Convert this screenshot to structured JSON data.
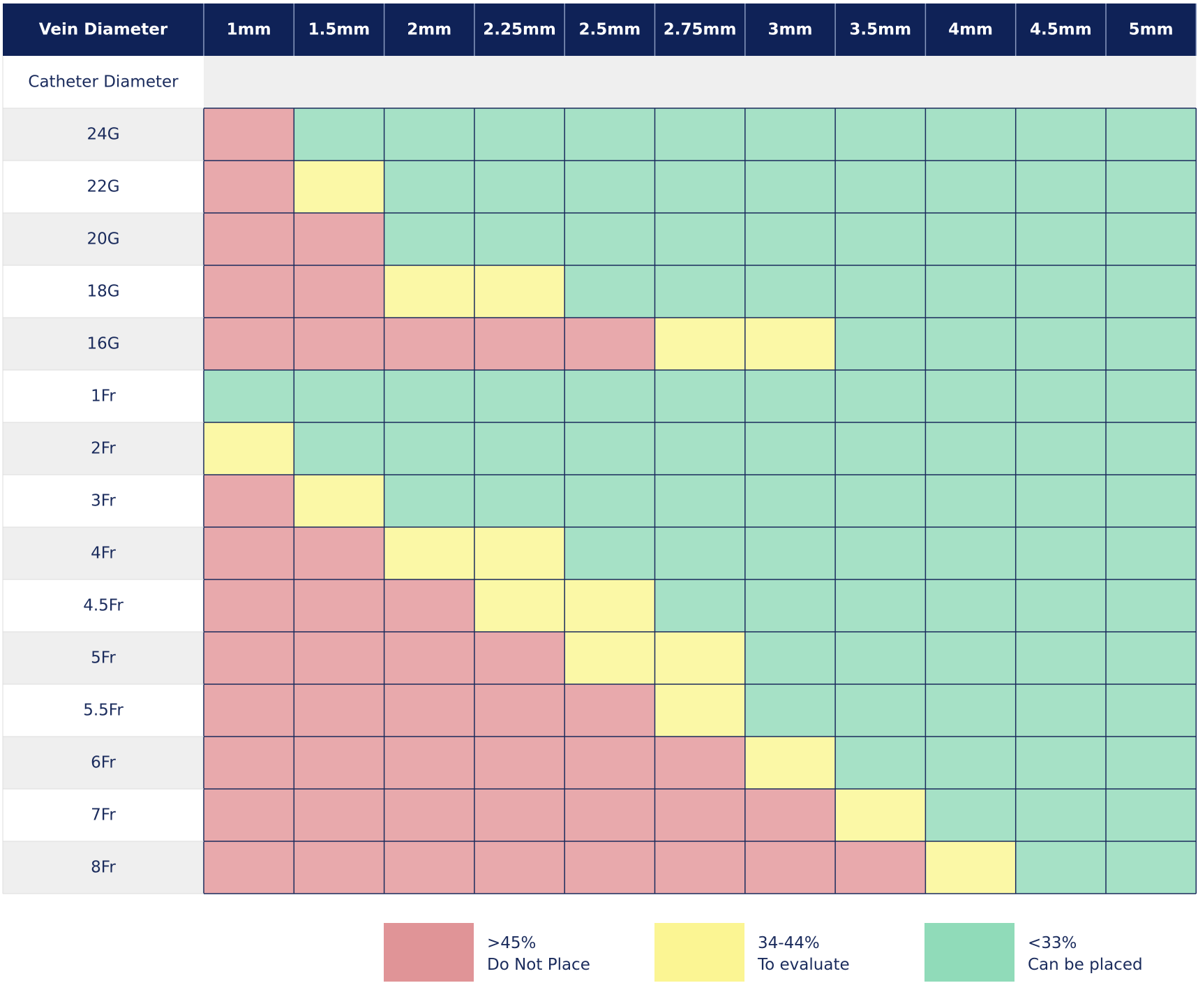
{
  "chart_data": {
    "type": "table",
    "header_label": "Vein Diameter",
    "subheader_label": "Catheter Diameter",
    "columns": [
      "1mm",
      "1.5mm",
      "2mm",
      "2.25mm",
      "2.5mm",
      "2.75mm",
      "3mm",
      "3.5mm",
      "4mm",
      "4.5mm",
      "5mm"
    ],
    "rows": [
      {
        "label": "24G",
        "cells": [
          "R",
          "G",
          "G",
          "G",
          "G",
          "G",
          "G",
          "G",
          "G",
          "G",
          "G"
        ]
      },
      {
        "label": "22G",
        "cells": [
          "R",
          "Y",
          "G",
          "G",
          "G",
          "G",
          "G",
          "G",
          "G",
          "G",
          "G"
        ]
      },
      {
        "label": "20G",
        "cells": [
          "R",
          "R",
          "G",
          "G",
          "G",
          "G",
          "G",
          "G",
          "G",
          "G",
          "G"
        ]
      },
      {
        "label": "18G",
        "cells": [
          "R",
          "R",
          "Y",
          "Y",
          "G",
          "G",
          "G",
          "G",
          "G",
          "G",
          "G"
        ]
      },
      {
        "label": "16G",
        "cells": [
          "R",
          "R",
          "R",
          "R",
          "R",
          "Y",
          "Y",
          "G",
          "G",
          "G",
          "G"
        ]
      },
      {
        "label": "1Fr",
        "cells": [
          "G",
          "G",
          "G",
          "G",
          "G",
          "G",
          "G",
          "G",
          "G",
          "G",
          "G"
        ]
      },
      {
        "label": "2Fr",
        "cells": [
          "Y",
          "G",
          "G",
          "G",
          "G",
          "G",
          "G",
          "G",
          "G",
          "G",
          "G"
        ]
      },
      {
        "label": "3Fr",
        "cells": [
          "R",
          "Y",
          "G",
          "G",
          "G",
          "G",
          "G",
          "G",
          "G",
          "G",
          "G"
        ]
      },
      {
        "label": "4Fr",
        "cells": [
          "R",
          "R",
          "Y",
          "Y",
          "G",
          "G",
          "G",
          "G",
          "G",
          "G",
          "G"
        ]
      },
      {
        "label": "4.5Fr",
        "cells": [
          "R",
          "R",
          "R",
          "Y",
          "Y",
          "G",
          "G",
          "G",
          "G",
          "G",
          "G"
        ]
      },
      {
        "label": "5Fr",
        "cells": [
          "R",
          "R",
          "R",
          "R",
          "Y",
          "Y",
          "G",
          "G",
          "G",
          "G",
          "G"
        ]
      },
      {
        "label": "5.5Fr",
        "cells": [
          "R",
          "R",
          "R",
          "R",
          "R",
          "Y",
          "G",
          "G",
          "G",
          "G",
          "G"
        ]
      },
      {
        "label": "6Fr",
        "cells": [
          "R",
          "R",
          "R",
          "R",
          "R",
          "R",
          "Y",
          "G",
          "G",
          "G",
          "G"
        ]
      },
      {
        "label": "7Fr",
        "cells": [
          "R",
          "R",
          "R",
          "R",
          "R",
          "R",
          "R",
          "Y",
          "G",
          "G",
          "G"
        ]
      },
      {
        "label": "8Fr",
        "cells": [
          "R",
          "R",
          "R",
          "R",
          "R",
          "R",
          "R",
          "R",
          "Y",
          "G",
          "G"
        ]
      }
    ],
    "legend": [
      {
        "key": "R",
        "range": ">45%",
        "label": "Do Not Place"
      },
      {
        "key": "Y",
        "range": "34-44%",
        "label": "To evaluate"
      },
      {
        "key": "G",
        "range": "<33%",
        "label": "Can be placed"
      }
    ]
  },
  "colors": {
    "header_bg": "#0f2257",
    "header_text": "#ffffff",
    "label_text": "#1a2b5c",
    "row_alt_bg": "#efefef",
    "row_bg": "#ffffff",
    "gridline": "#1a2b5c",
    "cell": {
      "R": "#e8a9ac",
      "Y": "#fbf8a6",
      "G": "#a6e1c6"
    },
    "legend_swatch": {
      "R": "#e09497",
      "Y": "#fbf593",
      "G": "#90dbb9"
    }
  }
}
